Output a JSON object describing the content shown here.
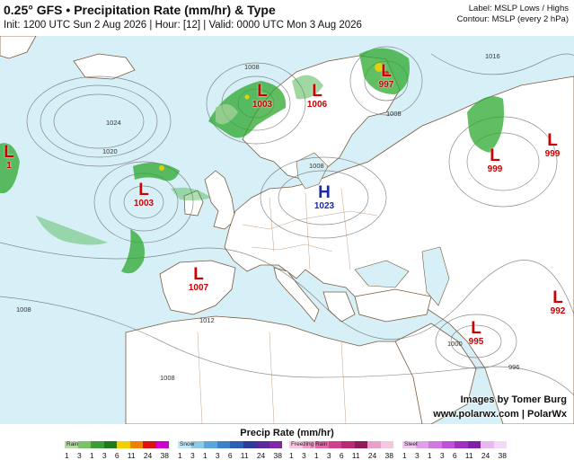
{
  "header": {
    "title": "0.25° GFS • Precipitation Rate (mm/hr) & Type",
    "subtitle": "Init: 1200 UTC Sun 2 Aug 2026 | Hour: [12] | Valid: 0000 UTC Mon 3 Aug 2026",
    "label_note": "Label: MSLP Lows / Highs",
    "contour_note": "Contour: MSLP (every 2 hPa)"
  },
  "pressure_centers": [
    {
      "kind": "L",
      "value": "1003"
    },
    {
      "kind": "L",
      "value": "1006"
    },
    {
      "kind": "L",
      "value": "997"
    },
    {
      "kind": "L",
      "value": "1003"
    },
    {
      "kind": "L",
      "value": "999"
    },
    {
      "kind": "L",
      "value": "999"
    },
    {
      "kind": "H",
      "value": "1023"
    },
    {
      "kind": "L",
      "value": "1007"
    },
    {
      "kind": "L",
      "value": "992"
    },
    {
      "kind": "L",
      "value": "995"
    },
    {
      "kind": "L",
      "value": "1"
    }
  ],
  "isobar_labels": [
    "1008",
    "1024",
    "1020",
    "1008",
    "1016",
    "1008",
    "1012",
    "1008",
    "1008",
    "1000",
    "996"
  ],
  "credit": {
    "line1": "Images by Tomer Burg",
    "line2": "www.polarwx.com | PolarWx"
  },
  "legend": {
    "title": "Precip Rate (mm/hr)",
    "bars": [
      {
        "name": "Rain",
        "colors": [
          "#b8d8a8",
          "#7cc26a",
          "#3a9e33",
          "#1f7a1f",
          "#f0d000",
          "#f08000",
          "#e01010",
          "#d000d0"
        ],
        "ticks": [
          "1",
          "3",
          "1",
          "3",
          "6",
          "11",
          "24",
          "38"
        ]
      },
      {
        "name": "Snow",
        "colors": [
          "#c4e6f2",
          "#90c8e4",
          "#5aa6d8",
          "#3c82c6",
          "#2c5fb0",
          "#2c3e98",
          "#5a2a9a",
          "#7a2aa8"
        ],
        "ticks": [
          "1",
          "3",
          "1",
          "3",
          "6",
          "11",
          "24",
          "38"
        ]
      },
      {
        "name": "Freezing Rain",
        "colors": [
          "#f6c6de",
          "#ee9cc6",
          "#e06aa8",
          "#d0408c",
          "#b82a74",
          "#8e1c5a",
          "#e8a0c8",
          "#f0c8e0"
        ],
        "ticks": [
          "1",
          "3",
          "1",
          "3",
          "6",
          "11",
          "24",
          "38"
        ]
      },
      {
        "name": "Sleet",
        "colors": [
          "#f0c8f0",
          "#e0a0e8",
          "#d078e0",
          "#c050d8",
          "#a030c0",
          "#8020a8",
          "#e8b8f0",
          "#f4d8f8"
        ],
        "ticks": [
          "1",
          "3",
          "1",
          "3",
          "6",
          "11",
          "24",
          "38"
        ]
      }
    ]
  },
  "colors": {
    "low": "#cc0000",
    "high": "#1a2aa8",
    "sea": "#d7f0f7",
    "land": "#ffffff",
    "precip": "#2ea82e"
  }
}
